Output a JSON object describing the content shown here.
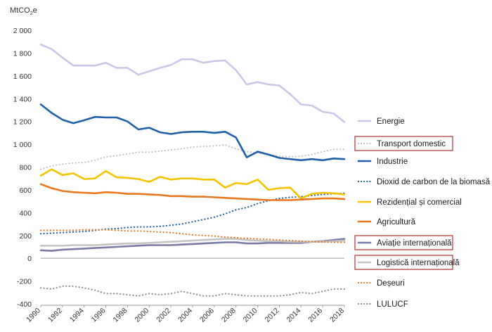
{
  "chart_data": {
    "type": "line",
    "unit_label": "MtCO",
    "unit_sub": "2",
    "unit_suffix": "e",
    "ylim": [
      -400,
      2000
    ],
    "yticks": [
      -400,
      -200,
      0,
      200,
      400,
      600,
      800,
      1000,
      1200,
      1400,
      1600,
      1800,
      2000
    ],
    "ytick_labels": [
      "-400",
      "-200",
      "0",
      "200",
      "400",
      "600",
      "800",
      "1 000",
      "1 200",
      "1 400",
      "1 600",
      "1 800",
      "2 000"
    ],
    "xlim": [
      1990,
      2018
    ],
    "xticks": [
      1990,
      1992,
      1994,
      1996,
      1998,
      2000,
      2002,
      2004,
      2006,
      2008,
      2010,
      2012,
      2014,
      2016,
      2018
    ],
    "x": [
      1990,
      1991,
      1992,
      1993,
      1994,
      1995,
      1996,
      1997,
      1998,
      1999,
      2000,
      2001,
      2002,
      2003,
      2004,
      2005,
      2006,
      2007,
      2008,
      2009,
      2010,
      2011,
      2012,
      2013,
      2014,
      2015,
      2016,
      2017,
      2018
    ],
    "grid": false,
    "legend_position": "right",
    "series": [
      {
        "name": "Energie",
        "color": "#c9c6e6",
        "style": "solid",
        "values": [
          1875,
          1835,
          1760,
          1690,
          1690,
          1690,
          1715,
          1670,
          1670,
          1610,
          1640,
          1670,
          1695,
          1745,
          1745,
          1715,
          1730,
          1735,
          1650,
          1525,
          1545,
          1525,
          1515,
          1440,
          1350,
          1340,
          1285,
          1270,
          1195
        ]
      },
      {
        "name": "Transport domestic",
        "color": "#c4c4c4",
        "style": "dotted",
        "boxed": true,
        "values": [
          780,
          810,
          825,
          835,
          840,
          860,
          890,
          900,
          915,
          930,
          930,
          940,
          950,
          960,
          975,
          980,
          985,
          995,
          960,
          935,
          925,
          910,
          895,
          890,
          895,
          910,
          935,
          955,
          955
        ]
      },
      {
        "name": "Industrie",
        "color": "#1f5fa8",
        "style": "solid",
        "values": [
          1350,
          1275,
          1215,
          1185,
          1210,
          1240,
          1235,
          1235,
          1200,
          1130,
          1145,
          1105,
          1090,
          1105,
          1110,
          1110,
          1100,
          1110,
          1060,
          885,
          935,
          910,
          880,
          870,
          860,
          870,
          860,
          875,
          870
        ]
      },
      {
        "name": "Dioxid de carbon de la biomasă",
        "color": "#1f5fa8",
        "style": "dotted",
        "values": [
          215,
          220,
          225,
          230,
          235,
          245,
          255,
          260,
          270,
          275,
          275,
          280,
          290,
          300,
          320,
          340,
          360,
          390,
          425,
          445,
          480,
          505,
          525,
          535,
          540,
          550,
          560,
          565,
          570
        ]
      },
      {
        "name": "Rezidențial și comercial",
        "color": "#f5c400",
        "style": "solid",
        "values": [
          725,
          780,
          730,
          745,
          695,
          700,
          765,
          710,
          705,
          695,
          670,
          715,
          690,
          700,
          700,
          690,
          690,
          620,
          660,
          650,
          690,
          600,
          615,
          620,
          525,
          565,
          575,
          570,
          560
        ]
      },
      {
        "name": "Agricultură",
        "color": "#e8771e",
        "style": "solid",
        "values": [
          650,
          615,
          590,
          580,
          575,
          570,
          580,
          575,
          565,
          565,
          560,
          555,
          545,
          545,
          540,
          540,
          535,
          530,
          525,
          520,
          515,
          510,
          510,
          510,
          515,
          520,
          525,
          525,
          520
        ]
      },
      {
        "name": "Aviație internațională",
        "color": "#7a7aa6",
        "style": "solid",
        "boxed": true,
        "values": [
          70,
          65,
          75,
          80,
          85,
          90,
          95,
          100,
          105,
          110,
          115,
          115,
          115,
          120,
          125,
          130,
          135,
          140,
          140,
          130,
          130,
          135,
          135,
          135,
          135,
          145,
          150,
          160,
          170
        ]
      },
      {
        "name": "Logistică internațională",
        "color": "#c4c4c4",
        "style": "solid",
        "boxed": true,
        "values": [
          110,
          110,
          110,
          115,
          115,
          115,
          120,
          125,
          130,
          130,
          135,
          140,
          145,
          150,
          155,
          160,
          165,
          170,
          170,
          160,
          155,
          150,
          150,
          145,
          145,
          145,
          145,
          150,
          155
        ]
      },
      {
        "name": "Deșeuri",
        "color": "#e8771e",
        "style": "dotted",
        "values": [
          245,
          245,
          245,
          245,
          250,
          250,
          250,
          245,
          240,
          240,
          235,
          230,
          225,
          215,
          205,
          200,
          195,
          185,
          180,
          175,
          170,
          165,
          160,
          155,
          150,
          145,
          145,
          140,
          140
        ]
      },
      {
        "name": "LULUCF",
        "color": "#8e8e8e",
        "style": "dotted",
        "values": [
          -260,
          -270,
          -245,
          -245,
          -260,
          -280,
          -310,
          -310,
          -320,
          -330,
          -310,
          -320,
          -310,
          -290,
          -310,
          -330,
          -330,
          -310,
          -320,
          -330,
          -330,
          -330,
          -330,
          -320,
          -300,
          -310,
          -290,
          -270,
          -270
        ]
      }
    ]
  }
}
